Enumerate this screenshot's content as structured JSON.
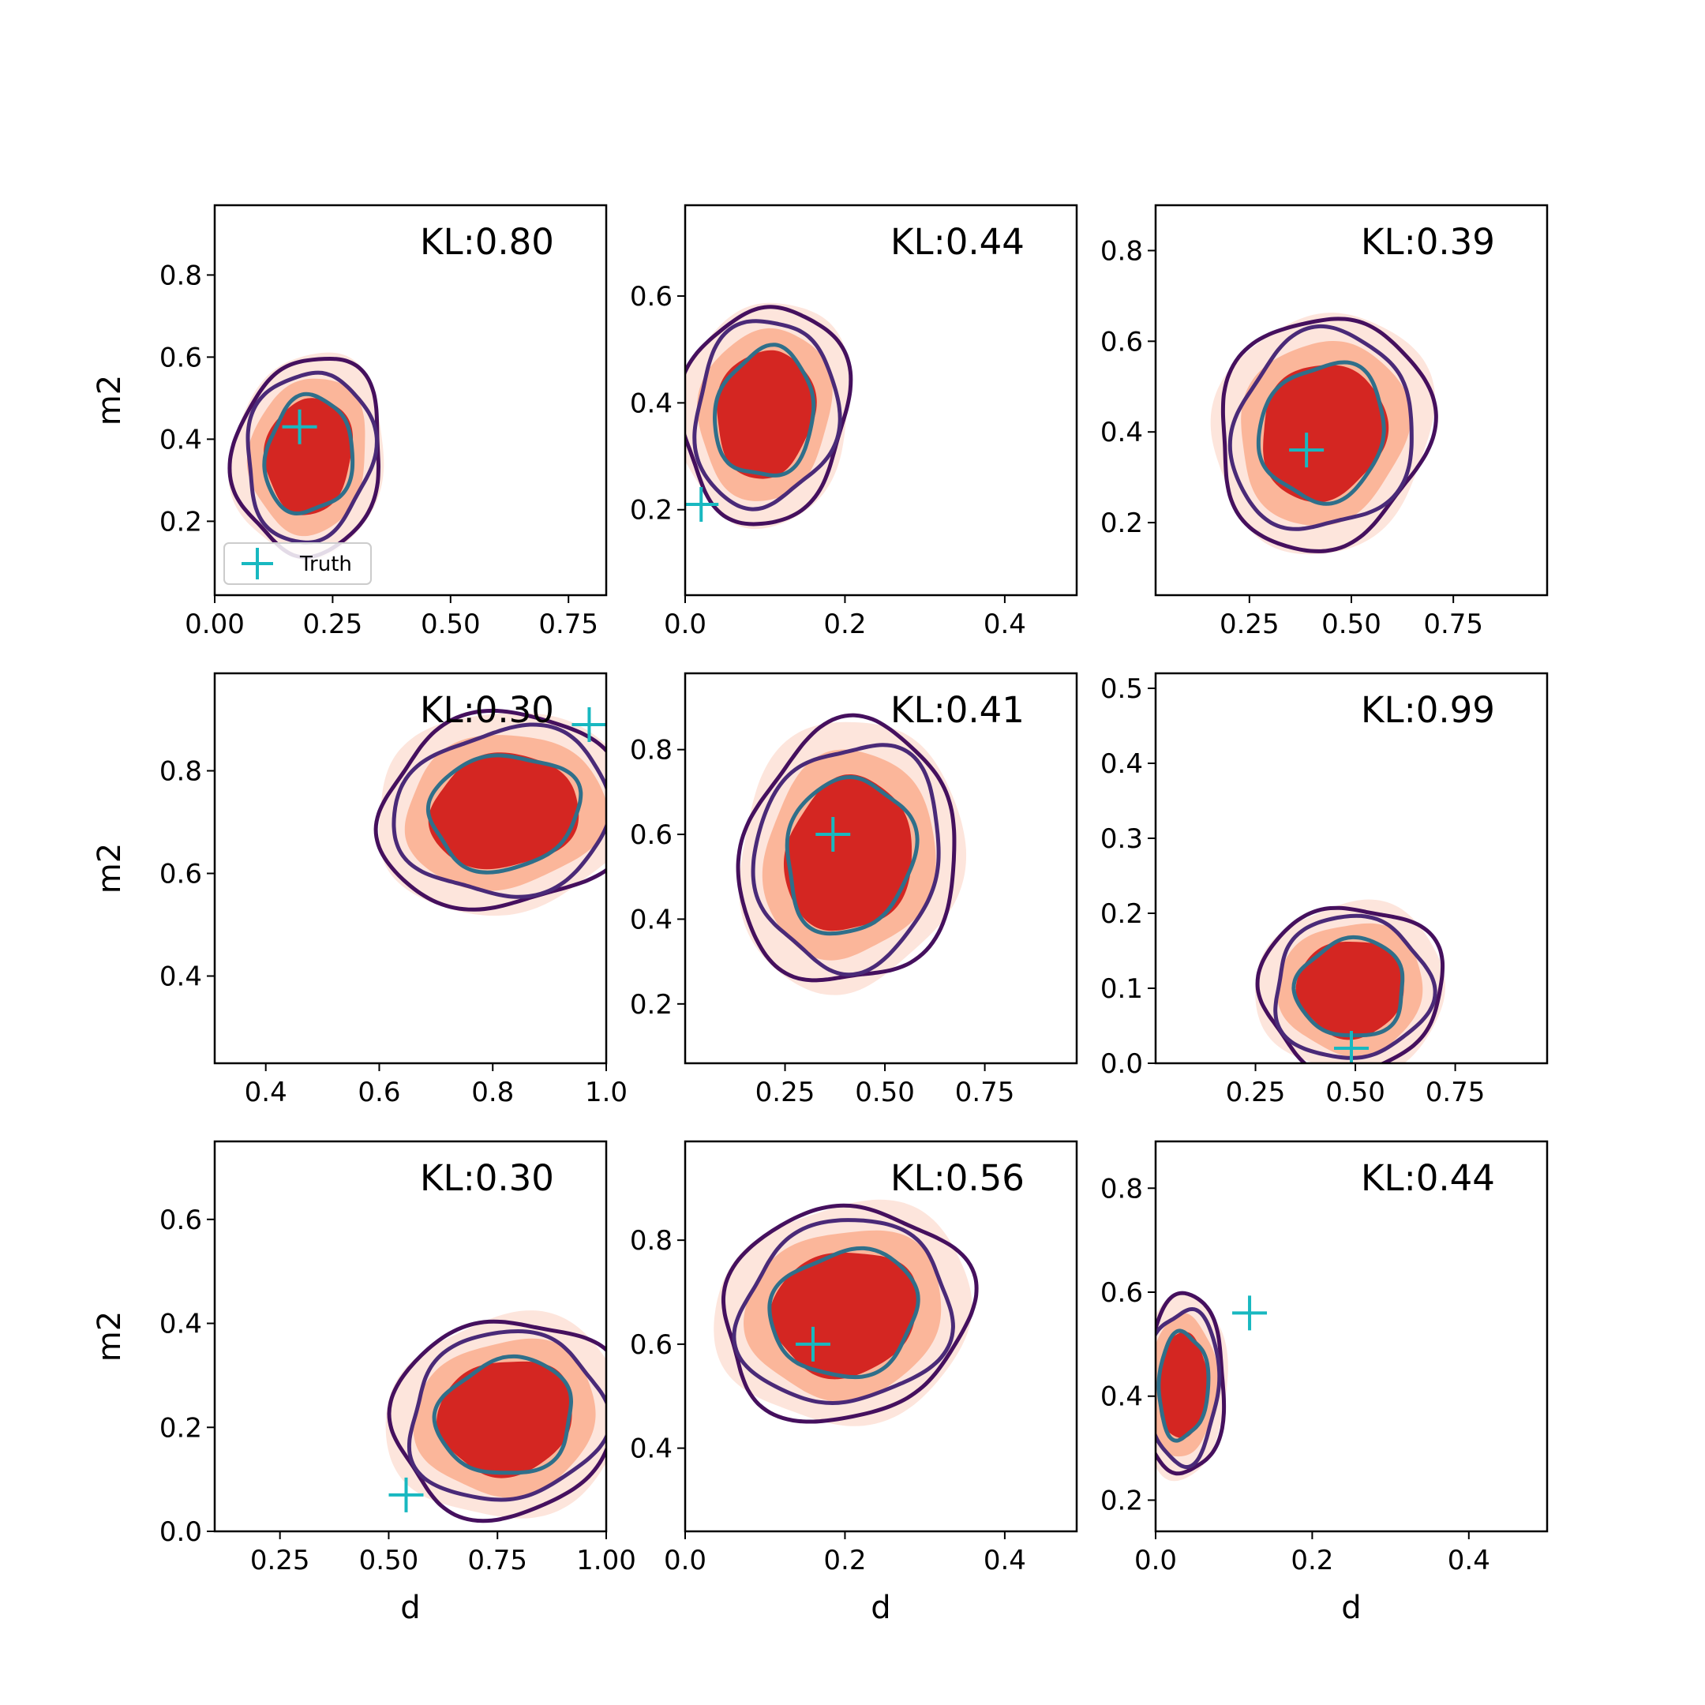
{
  "chart_data": {
    "type": "contour-grid",
    "xlabel": "d",
    "ylabel": "m2",
    "legend": {
      "label": "Truth",
      "location": "lower-left",
      "panel": 0
    },
    "colors": {
      "fill_levels": [
        "#fde5dc",
        "#fbb69a",
        "#d42622"
      ],
      "contour_outer": "#45105e",
      "contour_mid": "#4a2a78",
      "contour_inner": "#2f6f8a",
      "truth_marker": "#18b8c0"
    },
    "panels": [
      {
        "kl_label": "KL:0.80",
        "xlim": [
          0.0,
          0.83
        ],
        "ylim": [
          0.02,
          0.97
        ],
        "xticks": [
          "0.00",
          "0.25",
          "0.50",
          "0.75"
        ],
        "xtick_vals": [
          0,
          0.25,
          0.5,
          0.75
        ],
        "yticks": [
          "0.2",
          "0.4",
          "0.6",
          "0.8"
        ],
        "ytick_vals": [
          0.2,
          0.4,
          0.6,
          0.8
        ],
        "truth": [
          0.18,
          0.43
        ],
        "center": [
          0.2,
          0.36
        ],
        "spread": [
          0.12,
          0.19
        ],
        "tilt": 0.62
      },
      {
        "kl_label": "KL:0.44",
        "xlim": [
          0.0,
          0.49
        ],
        "ylim": [
          0.04,
          0.77
        ],
        "xticks": [
          "0.0",
          "0.2",
          "0.4"
        ],
        "xtick_vals": [
          0,
          0.2,
          0.4
        ],
        "yticks": [
          "0.2",
          "0.4",
          "0.6"
        ],
        "ytick_vals": [
          0.2,
          0.4,
          0.6
        ],
        "truth": [
          0.02,
          0.21
        ],
        "center": [
          0.1,
          0.38
        ],
        "spread": [
          0.08,
          0.16
        ],
        "tilt": 0.64
      },
      {
        "kl_label": "KL:0.39",
        "xlim": [
          0.02,
          0.98
        ],
        "ylim": [
          0.04,
          0.9
        ],
        "xticks": [
          "0.25",
          "0.50",
          "0.75"
        ],
        "xtick_vals": [
          0.25,
          0.5,
          0.75
        ],
        "yticks": [
          "0.2",
          "0.4",
          "0.6",
          "0.8"
        ],
        "ytick_vals": [
          0.2,
          0.4,
          0.6,
          0.8
        ],
        "truth": [
          0.39,
          0.36
        ],
        "center": [
          0.43,
          0.4
        ],
        "spread": [
          0.2,
          0.2
        ],
        "tilt": 0.72
      },
      {
        "kl_label": "KL:0.30",
        "xlim": [
          0.31,
          1.0
        ],
        "ylim": [
          0.23,
          0.99
        ],
        "xticks": [
          "0.4",
          "0.6",
          "0.8",
          "1.0"
        ],
        "xtick_vals": [
          0.4,
          0.6,
          0.8,
          1.0
        ],
        "yticks": [
          "0.4",
          "0.6",
          "0.8"
        ],
        "ytick_vals": [
          0.4,
          0.6,
          0.8
        ],
        "truth": [
          0.97,
          0.89
        ],
        "center": [
          0.82,
          0.72
        ],
        "spread": [
          0.17,
          0.15
        ],
        "tilt": 0.6
      },
      {
        "kl_label": "KL:0.41",
        "xlim": [
          0.0,
          0.98
        ],
        "ylim": [
          0.06,
          0.98
        ],
        "xticks": [
          "0.25",
          "0.50",
          "0.75"
        ],
        "xtick_vals": [
          0.25,
          0.5,
          0.75
        ],
        "yticks": [
          "0.2",
          "0.4",
          "0.6",
          "0.8"
        ],
        "ytick_vals": [
          0.2,
          0.4,
          0.6,
          0.8
        ],
        "truth": [
          0.37,
          0.6
        ],
        "center": [
          0.41,
          0.55
        ],
        "spread": [
          0.21,
          0.24
        ],
        "tilt": 0.78
      },
      {
        "kl_label": "KL:0.99",
        "xlim": [
          0.0,
          0.98
        ],
        "ylim": [
          0.0,
          0.52
        ],
        "xticks": [
          "0.25",
          "0.50",
          "0.75"
        ],
        "xtick_vals": [
          0.25,
          0.5,
          0.75
        ],
        "yticks": [
          "0.0",
          "0.1",
          "0.2",
          "0.3",
          "0.4",
          "0.5"
        ],
        "ytick_vals": [
          0,
          0.1,
          0.2,
          0.3,
          0.4,
          0.5
        ],
        "truth": [
          0.49,
          0.02
        ],
        "center": [
          0.49,
          0.1
        ],
        "spread": [
          0.17,
          0.09
        ],
        "tilt": 0.15
      },
      {
        "kl_label": "KL:0.30",
        "xlim": [
          0.1,
          1.0
        ],
        "ylim": [
          0.0,
          0.75
        ],
        "xticks": [
          "0.25",
          "0.50",
          "0.75",
          "1.00"
        ],
        "xtick_vals": [
          0.25,
          0.5,
          0.75,
          1.0
        ],
        "yticks": [
          "0.0",
          "0.2",
          "0.4",
          "0.6"
        ],
        "ytick_vals": [
          0,
          0.2,
          0.4,
          0.6
        ],
        "truth": [
          0.54,
          0.07
        ],
        "center": [
          0.77,
          0.22
        ],
        "spread": [
          0.2,
          0.15
        ],
        "tilt": 0.55
      },
      {
        "kl_label": "KL:0.56",
        "xlim": [
          0.0,
          0.49
        ],
        "ylim": [
          0.24,
          0.99
        ],
        "xticks": [
          "0.0",
          "0.2",
          "0.4"
        ],
        "xtick_vals": [
          0,
          0.2,
          0.4
        ],
        "yticks": [
          "0.4",
          "0.6",
          "0.8"
        ],
        "ytick_vals": [
          0.4,
          0.6,
          0.8
        ],
        "truth": [
          0.16,
          0.6
        ],
        "center": [
          0.2,
          0.66
        ],
        "spread": [
          0.12,
          0.16
        ],
        "tilt": 0.74
      },
      {
        "kl_label": "KL:0.44",
        "xlim": [
          0.0,
          0.5
        ],
        "ylim": [
          0.14,
          0.89
        ],
        "xticks": [
          "0.0",
          "0.2",
          "0.4"
        ],
        "xtick_vals": [
          0,
          0.2,
          0.4
        ],
        "yticks": [
          "0.2",
          "0.4",
          "0.6",
          "0.8"
        ],
        "ytick_vals": [
          0.2,
          0.4,
          0.6,
          0.8
        ],
        "truth": [
          0.12,
          0.56
        ],
        "center": [
          0.035,
          0.42
        ],
        "spread": [
          0.04,
          0.14
        ],
        "tilt": 0.3
      }
    ]
  }
}
